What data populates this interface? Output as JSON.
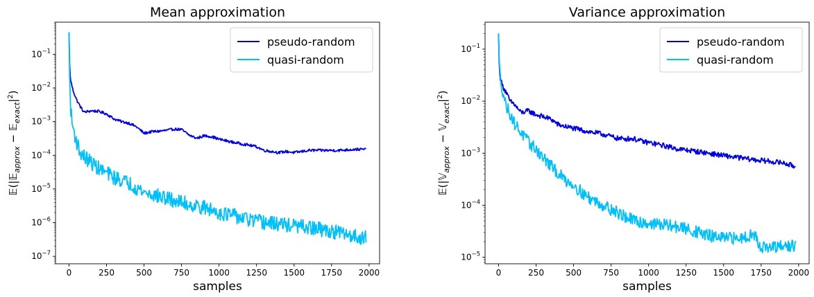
{
  "chart_data": [
    {
      "type": "line",
      "title": "Mean approximation",
      "xlabel": "samples",
      "ylabel_text": "𝔼(|𝔼approx − 𝔼exact|²)",
      "ylabel_parts": [
        "𝔼(|𝔼",
        "approx",
        " − 𝔼",
        "exact",
        "|",
        "2",
        ")"
      ],
      "yscale": "log",
      "xlim": [
        -90,
        2070
      ],
      "ylim": [
        6e-08,
        0.9
      ],
      "xticks": [
        0,
        250,
        500,
        750,
        1000,
        1250,
        1500,
        1750,
        2000
      ],
      "yticks": [
        1e-07,
        1e-06,
        1e-05,
        0.0001,
        0.001,
        0.01,
        0.1
      ],
      "ytick_labels": [
        [
          "10",
          "−7"
        ],
        [
          "10",
          "−6"
        ],
        [
          "10",
          "−5"
        ],
        [
          "10",
          "−4"
        ],
        [
          "10",
          "−3"
        ],
        [
          "10",
          "−2"
        ],
        [
          "10",
          "−1"
        ]
      ],
      "legend_position": "upper right",
      "series": [
        {
          "name": "pseudo-random",
          "color": "#0000e6",
          "noise": 0.04,
          "x": [
            0,
            5,
            10,
            25,
            50,
            75,
            100,
            150,
            200,
            250,
            300,
            350,
            400,
            450,
            500,
            550,
            600,
            650,
            700,
            750,
            800,
            850,
            900,
            950,
            1000,
            1100,
            1200,
            1250,
            1300,
            1350,
            1400,
            1450,
            1500,
            1600,
            1700,
            1800,
            1900,
            1980
          ],
          "y": [
            0.45,
            0.03,
            0.018,
            0.009,
            0.0045,
            0.0028,
            0.0019,
            0.0021,
            0.002,
            0.0017,
            0.0012,
            0.001,
            0.0009,
            0.0007,
            0.00045,
            0.0005,
            0.00052,
            0.00055,
            0.0006,
            0.00058,
            0.0004,
            0.00032,
            0.00038,
            0.00036,
            0.0003,
            0.00024,
            0.0002,
            0.00018,
            0.00014,
            0.00013,
            0.00012,
            0.00013,
            0.00012,
            0.00014,
            0.00014,
            0.00014,
            0.00015,
            0.00015
          ]
        },
        {
          "name": "quasi-random",
          "color": "#00bfff",
          "noise": 0.22,
          "x": [
            0,
            5,
            10,
            20,
            30,
            50,
            75,
            100,
            150,
            200,
            250,
            300,
            400,
            500,
            600,
            700,
            800,
            900,
            1000,
            1100,
            1200,
            1300,
            1400,
            1500,
            1600,
            1700,
            1800,
            1900,
            1980
          ],
          "y": [
            0.45,
            0.01,
            0.003,
            0.0009,
            0.0006,
            0.00025,
            0.00012,
            9e-05,
            6e-05,
            4e-05,
            3e-05,
            2.2e-05,
            1.5e-05,
            8e-06,
            6e-06,
            4.5e-06,
            3.5e-06,
            2.8e-06,
            2e-06,
            1.6e-06,
            1.2e-06,
            1e-06,
            9e-07,
            8e-07,
            7e-07,
            6e-07,
            5e-07,
            4e-07,
            3.5e-07
          ]
        }
      ]
    },
    {
      "type": "line",
      "title": "Variance approximation",
      "xlabel": "samples",
      "ylabel_text": "𝔼(|𝕍approx − 𝕍exact|²)",
      "ylabel_parts": [
        "𝔼(|𝕍",
        "approx",
        " − 𝕍",
        "exact",
        "|",
        "2",
        ")"
      ],
      "yscale": "log",
      "xlim": [
        -90,
        2070
      ],
      "ylim": [
        7.5e-06,
        0.33
      ],
      "xticks": [
        0,
        250,
        500,
        750,
        1000,
        1250,
        1500,
        1750,
        2000
      ],
      "yticks": [
        1e-05,
        0.0001,
        0.001,
        0.01,
        0.1
      ],
      "ytick_labels": [
        [
          "10",
          "−5"
        ],
        [
          "10",
          "−4"
        ],
        [
          "10",
          "−3"
        ],
        [
          "10",
          "−2"
        ],
        [
          "10",
          "−1"
        ]
      ],
      "legend_position": "upper right",
      "series": [
        {
          "name": "pseudo-random",
          "color": "#0000e6",
          "noise": 0.05,
          "x": [
            0,
            5,
            10,
            25,
            50,
            75,
            100,
            150,
            200,
            250,
            300,
            350,
            400,
            500,
            600,
            700,
            800,
            900,
            950,
            1000,
            1100,
            1200,
            1300,
            1400,
            1500,
            1600,
            1700,
            1800,
            1900,
            1980
          ],
          "y": [
            0.2,
            0.04,
            0.03,
            0.02,
            0.015,
            0.01,
            0.009,
            0.006,
            0.0065,
            0.0055,
            0.005,
            0.0045,
            0.0035,
            0.003,
            0.0026,
            0.0023,
            0.0019,
            0.0019,
            0.0017,
            0.0016,
            0.0014,
            0.0012,
            0.0011,
            0.001,
            0.0009,
            0.00082,
            0.00075,
            0.0007,
            0.00065,
            0.00055
          ]
        },
        {
          "name": "quasi-random",
          "color": "#00bfff",
          "noise": 0.12,
          "x": [
            0,
            5,
            10,
            20,
            30,
            50,
            75,
            100,
            150,
            200,
            250,
            300,
            400,
            450,
            500,
            550,
            600,
            700,
            800,
            900,
            1000,
            1100,
            1200,
            1300,
            1400,
            1500,
            1600,
            1700,
            1750,
            1800,
            1900,
            1980
          ],
          "y": [
            0.2,
            0.05,
            0.03,
            0.02,
            0.015,
            0.008,
            0.006,
            0.004,
            0.0025,
            0.0016,
            0.0012,
            0.0008,
            0.0004,
            0.0003,
            0.00025,
            0.00018,
            0.00014,
            0.0001,
            7e-05,
            5e-05,
            4.5e-05,
            4.2e-05,
            3.8e-05,
            3.2e-05,
            2.6e-05,
            2.3e-05,
            2.3e-05,
            2.8e-05,
            1.6e-05,
            1.5e-05,
            1.6e-05,
            1.7e-05
          ]
        }
      ]
    }
  ]
}
